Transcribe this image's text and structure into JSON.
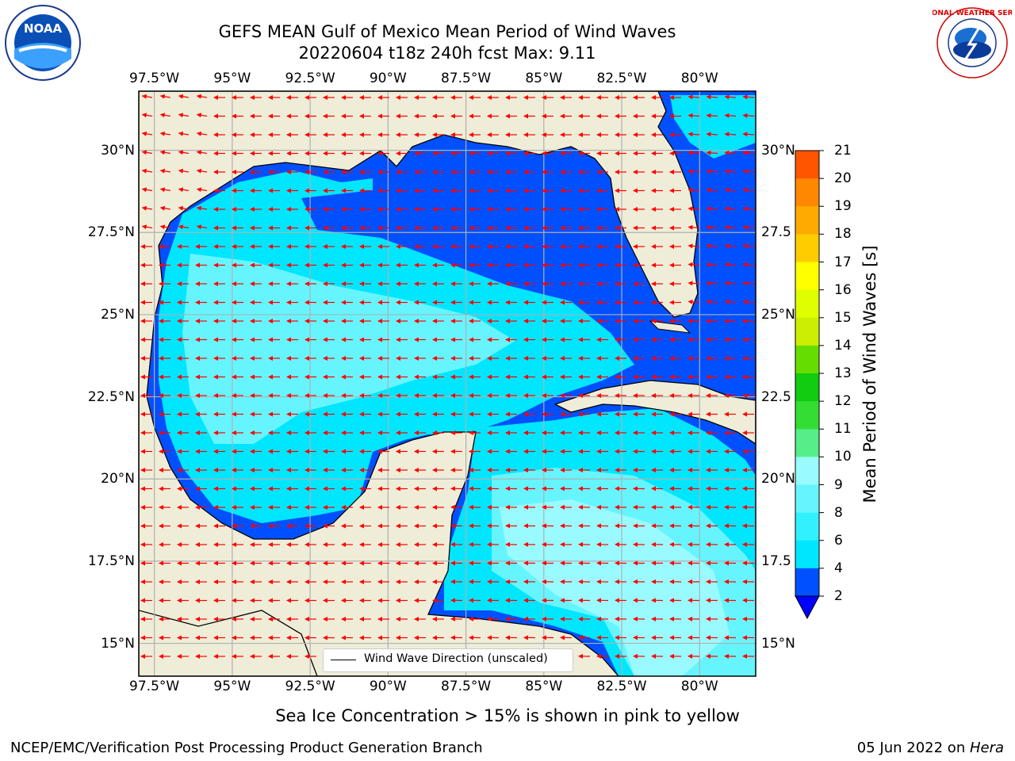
{
  "title": {
    "line1": "GEFS MEAN Gulf of Mexico Mean Period of Wind Waves",
    "line2": "20220604 t18z 240h fcst   Max: 9.11"
  },
  "axes": {
    "lon_ticks": [
      "97.5°W",
      "95°W",
      "92.5°W",
      "90°W",
      "87.5°W",
      "85°W",
      "82.5°W",
      "80°W"
    ],
    "lat_ticks_left": [
      "30°N",
      "27.5°N",
      "25°N",
      "22.5°N",
      "20°N",
      "17.5°N",
      "15°N"
    ],
    "lat_ticks_right": [
      "30°N",
      "27.5",
      "25°N",
      "22.5",
      "20°N",
      "17.5",
      "15°N"
    ],
    "lon_range": [
      -98.0,
      -78.2
    ],
    "lat_range": [
      14.0,
      31.8
    ]
  },
  "legend": {
    "label": "Wind Wave Direction (unscaled)"
  },
  "colorbar": {
    "label": "Mean Period of Wind Waves [s]",
    "tick_labels": [
      "2",
      "4",
      "6",
      "8",
      "9",
      "10",
      "11",
      "12",
      "13",
      "14",
      "15",
      "16",
      "17",
      "18",
      "19",
      "20",
      "21"
    ],
    "colors": [
      "#0050ff",
      "#00e6ff",
      "#33f0ff",
      "#66f5ff",
      "#99fbff",
      "#55ee88",
      "#33dd33",
      "#11cc11",
      "#66dd00",
      "#ccee00",
      "#ddff00",
      "#ffff00",
      "#ffcc00",
      "#ffaa00",
      "#ff8800",
      "#ff5500",
      "#ff2200",
      "#ff0000"
    ],
    "underflow_color": "#0000ff"
  },
  "footer": {
    "sea_ice_note": "Sea Ice Concentration > 15% is shown in pink to yellow",
    "branch": "NCEP/EMC/Verification Post Processing Product Generation Branch",
    "date": "05 Jun 2022 on ",
    "machine": "Hera"
  },
  "logos": {
    "noaa": "NOAA",
    "nws": "NATIONAL WEATHER SERVICE"
  },
  "colors": {
    "land": "#efedd8",
    "water_low": "#0050ff",
    "water_mid": "#00e6ff",
    "water_high": "#66f5ff",
    "arrow": "#ff0000",
    "grid": "#b0b0b0"
  }
}
